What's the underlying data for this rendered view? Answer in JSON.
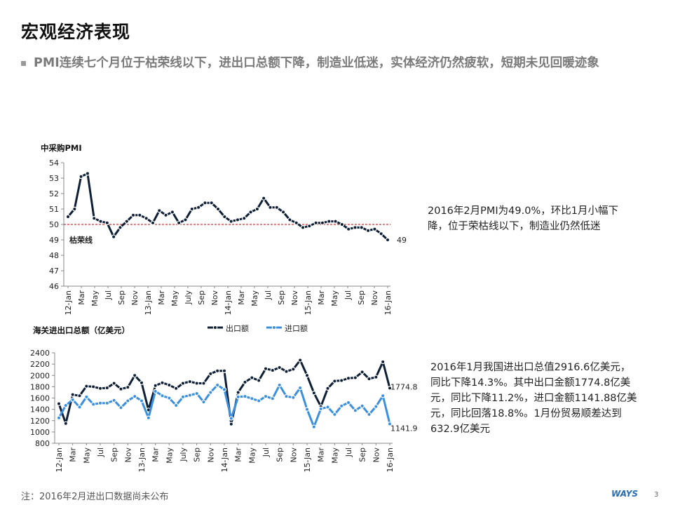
{
  "slide": {
    "title": "宏观经济表现",
    "bullet": "PMI连续七个月位于枯荣线以下，进出口总额下降，制造业低迷，实体经济仍然疲软，短期未见回暖迹象",
    "pmi_note": "2016年2月PMI为49.0%，环比1月小幅下降，位于荣枯线以下，制造业仍然低迷",
    "trade_note": "2016年1月我国进出口总值2916.6亿美元，同比下降14.3%。其中出口金额1774.8亿美元，同比下降11.2%，进口金额1141.88亿美元，同比回落18.8%。1月份贸易顺差达到632.9亿美元",
    "footnote": "注：2016年2月进出口数据尚未公布",
    "logo": "WAYS",
    "page_number": "3"
  },
  "chart_data": [
    {
      "type": "line",
      "title": "中采购PMI",
      "ylim": [
        46,
        54
      ],
      "yticks": [
        46,
        47,
        48,
        49,
        50,
        51,
        52,
        53,
        54
      ],
      "xtick_labels": [
        "12-Jan",
        "Mar",
        "May",
        "Jul",
        "Sep",
        "Nov",
        "13-Jan",
        "Mar",
        "May",
        "July",
        "Sep",
        "Nov",
        "14-Jan",
        "Mar",
        "May",
        "Jul",
        "Sep",
        "Nov",
        "15-Jan",
        "Mar",
        "May",
        "Jul",
        "Sep",
        "Nov",
        "16-Jan"
      ],
      "reference_line": {
        "value": 50,
        "label": "枯荣线",
        "color": "#cc0000"
      },
      "end_label": "49",
      "grid": false,
      "series": [
        {
          "values": [
            50.5,
            51.0,
            53.1,
            53.3,
            50.4,
            50.2,
            50.1,
            49.2,
            49.8,
            50.2,
            50.6,
            50.6,
            50.4,
            50.1,
            50.9,
            50.6,
            50.8,
            50.1,
            50.3,
            51.0,
            51.1,
            51.4,
            51.4,
            51.0,
            50.5,
            50.2,
            50.3,
            50.4,
            50.8,
            51.0,
            51.7,
            51.1,
            51.1,
            50.8,
            50.3,
            50.1,
            49.8,
            49.9,
            50.1,
            50.1,
            50.2,
            50.2,
            50.0,
            49.7,
            49.8,
            49.8,
            49.6,
            49.7,
            49.4,
            49.0
          ],
          "color": "#0e1f36"
        }
      ]
    },
    {
      "type": "line",
      "title": "海关进出口总额（亿美元）",
      "ylim": [
        800,
        2400
      ],
      "yticks": [
        800,
        1000,
        1200,
        1400,
        1600,
        1800,
        2000,
        2200,
        2400
      ],
      "xtick_labels": [
        "12-Jan",
        "Mar",
        "May",
        "Jul",
        "Sep",
        "Nov",
        "13-Jan",
        "Mar",
        "May",
        "July",
        "Sep",
        "Nov",
        "14-Jan",
        "Mar",
        "May",
        "Jul",
        "Sep",
        "Nov",
        "15-Jan",
        "Mar",
        "May",
        "Jul",
        "Sep",
        "Nov",
        "16-Jan"
      ],
      "legend_position": "top",
      "grid": false,
      "series": [
        {
          "name": "出口额",
          "color": "#0e1f36",
          "end_label": "1774.8",
          "values": [
            1500,
            1150,
            1660,
            1640,
            1810,
            1800,
            1770,
            1780,
            1860,
            1760,
            1790,
            2000,
            1870,
            1390,
            1820,
            1870,
            1830,
            1770,
            1860,
            1890,
            1860,
            1860,
            2030,
            2080,
            2080,
            1140,
            1700,
            1880,
            1960,
            1910,
            2120,
            2090,
            2140,
            2070,
            2110,
            2270,
            2000,
            1690,
            1450,
            1770,
            1900,
            1910,
            1950,
            1960,
            2060,
            1940,
            1970,
            2240,
            1774.8
          ]
        },
        {
          "name": "进口额",
          "color": "#3a8fdf",
          "end_label": "1141.9",
          "values": [
            1250,
            1470,
            1570,
            1440,
            1620,
            1490,
            1510,
            1510,
            1560,
            1430,
            1550,
            1630,
            1550,
            1250,
            1720,
            1640,
            1600,
            1470,
            1620,
            1650,
            1680,
            1530,
            1700,
            1830,
            1750,
            1240,
            1620,
            1630,
            1590,
            1550,
            1630,
            1590,
            1830,
            1630,
            1610,
            1780,
            1400,
            1090,
            1410,
            1440,
            1310,
            1460,
            1520,
            1380,
            1460,
            1310,
            1450,
            1640,
            1141.9
          ]
        }
      ]
    }
  ]
}
